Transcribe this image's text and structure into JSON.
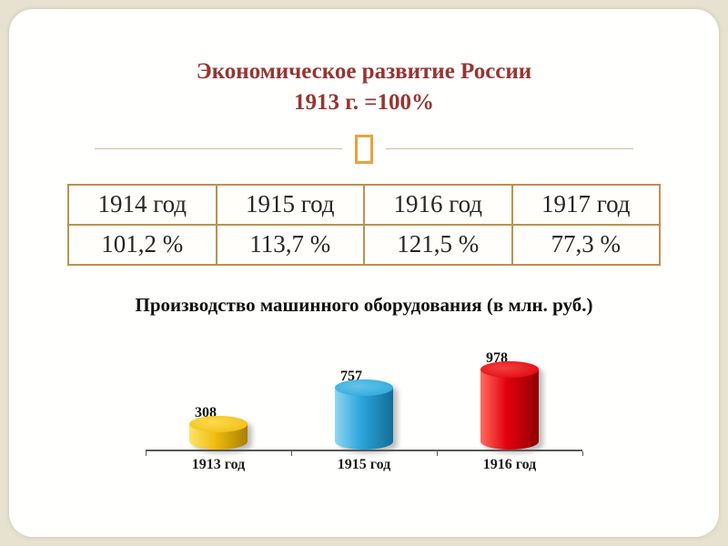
{
  "slide": {
    "title_line1": "Экономическое развитие России",
    "title_line2": "1913 г. =100%",
    "title_color": "#943634"
  },
  "table": {
    "headers": [
      "1914 год",
      "1915 год",
      "1916 год",
      "1917 год"
    ],
    "values": [
      "101,2 %",
      "113,7 %",
      "121,5 %",
      "77,3 %"
    ],
    "border_color": "#b99255"
  },
  "chart_data": {
    "type": "bar",
    "title": "Производство машинного оборудования (в млн. руб.)",
    "categories": [
      "1913 год",
      "1915 год",
      "1916 год"
    ],
    "values": [
      308,
      757,
      978
    ],
    "ylim": [
      0,
      1000
    ],
    "grid": false,
    "legend": "none",
    "bar_style": "3d-cylinder",
    "colors": [
      {
        "name": "yellow",
        "base": "#eebc0e",
        "light": "#ffe26a",
        "dark": "#a97f00",
        "top": "#ffd94e"
      },
      {
        "name": "blue",
        "base": "#2aa5dc",
        "light": "#8fd6f2",
        "dark": "#136d96",
        "top": "#63c4e8"
      },
      {
        "name": "red",
        "base": "#e3000e",
        "light": "#ff6b5e",
        "dark": "#8f0000",
        "top": "#f0413d"
      }
    ]
  },
  "ornament": {
    "color": "#e8a33d"
  }
}
